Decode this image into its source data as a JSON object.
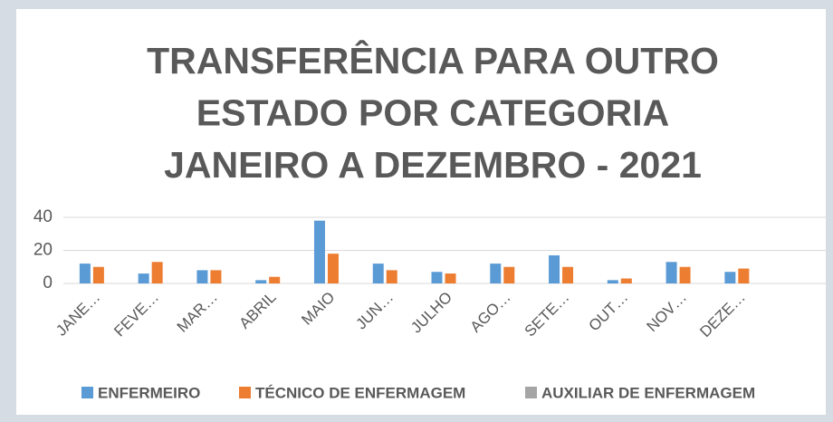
{
  "chart_data": {
    "type": "bar",
    "title": [
      "TRANSFERÊNCIA PARA OUTRO",
      "ESTADO POR CATEGORIA",
      "JANEIRO A DEZEMBRO - 2021"
    ],
    "categories": [
      "JANE…",
      "FEVE…",
      "MAR…",
      "ABRIL",
      "MAIO",
      "JUN…",
      "JULHO",
      "AGO…",
      "SETE…",
      "OUT…",
      "NOV…",
      "DEZE…",
      null
    ],
    "series": [
      {
        "name": "ENFERMEIRO",
        "color": "#5b9bd5",
        "values": [
          12,
          6,
          8,
          2,
          38,
          12,
          7,
          12,
          17,
          2,
          13,
          7,
          null
        ]
      },
      {
        "name": "TÉCNICO DE ENFERMAGEM",
        "color": "#ed7d31",
        "values": [
          10,
          13,
          8,
          4,
          18,
          8,
          6,
          10,
          10,
          3,
          10,
          9,
          null
        ]
      },
      {
        "name": "AUXILIAR DE ENFERMAGEM",
        "color": "#a5a5a5",
        "values": [
          0,
          0,
          0,
          0,
          0,
          0,
          0,
          0,
          0,
          0,
          0,
          0,
          null
        ]
      }
    ],
    "ylim": [
      0,
      40
    ],
    "yticks": [
      0,
      20,
      40
    ],
    "grid": true,
    "legend": "bottom"
  }
}
